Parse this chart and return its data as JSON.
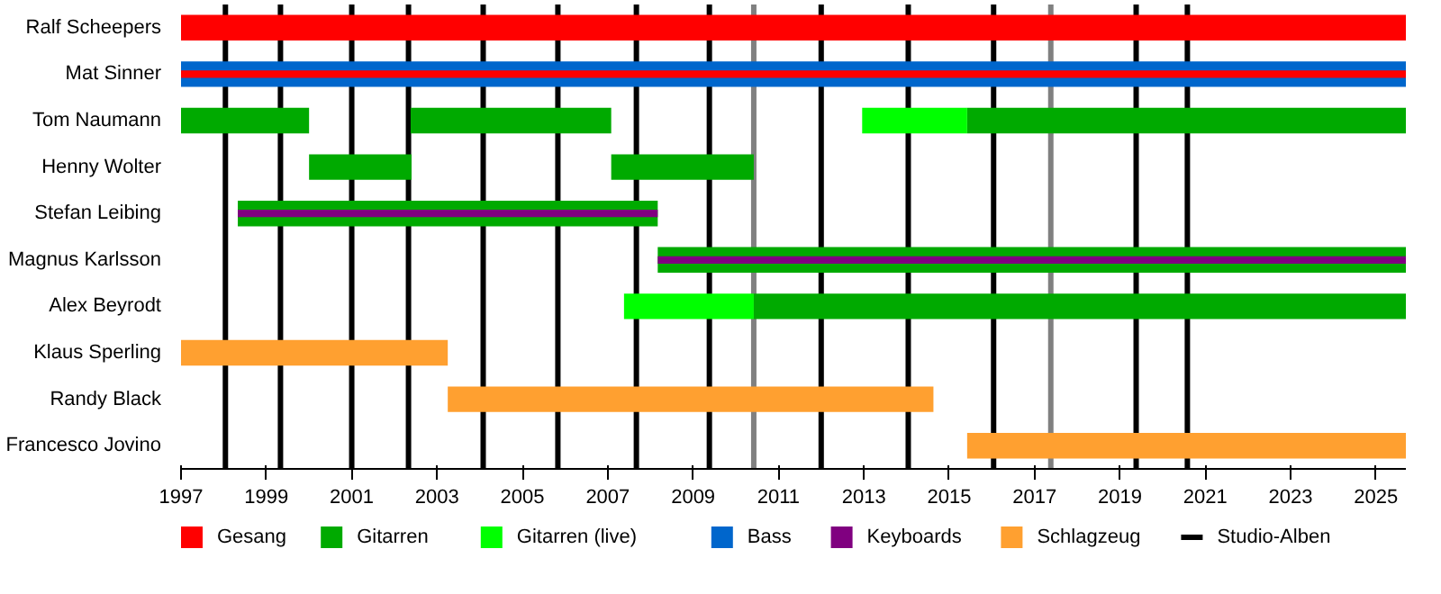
{
  "chart_data": {
    "type": "bar",
    "orientation": "horizontal",
    "categories": [
      "Ralf Scheepers",
      "Mat Sinner",
      "Tom Naumann",
      "Henny Wolter",
      "Stefan Leibing",
      "Magnus Karlsson",
      "Alex Beyrodt",
      "Klaus Sperling",
      "Randy Black",
      "Francesco Jovino"
    ],
    "series": [
      {
        "name": "Gesang",
        "color": "#ff0000",
        "base": [
          1997,
          null,
          null,
          null,
          null,
          null,
          null,
          null,
          null,
          null
        ],
        "values": [
          28.7,
          null,
          null,
          null,
          null,
          null,
          null,
          null,
          null,
          null
        ]
      },
      {
        "name": "Gitarren",
        "color": "#00aa00",
        "base": [
          null,
          null,
          1997,
          2000,
          1998.33,
          2008.17,
          2010.42,
          null,
          null,
          null
        ],
        "values": [
          null,
          null,
          3.0,
          2.4,
          9.84,
          17.53,
          15.28,
          null,
          null,
          null
        ]
      },
      {
        "color": "#00aa00",
        "base": [
          null,
          null,
          2002.38,
          2007.08,
          null,
          null,
          null,
          null,
          null,
          null
        ],
        "values": [
          null,
          null,
          4.7,
          3.34,
          null,
          null,
          null,
          null,
          null,
          null
        ]
      },
      {
        "color": "#00aa00",
        "base": [
          null,
          null,
          2015.42,
          null,
          null,
          null,
          null,
          null,
          null,
          null
        ],
        "values": [
          null,
          null,
          10.28,
          null,
          null,
          null,
          null,
          null,
          null,
          null
        ]
      },
      {
        "name": "Gitarren (live)",
        "color": "#00ff00",
        "base": [
          null,
          null,
          2012.96,
          null,
          null,
          null,
          2007.38,
          null,
          null,
          null
        ],
        "values": [
          null,
          null,
          2.46,
          null,
          null,
          null,
          3.04,
          null,
          null,
          null
        ]
      },
      {
        "name": "Bass",
        "color": "#0066cc",
        "base": [
          null,
          1997,
          null,
          null,
          null,
          null,
          null,
          null,
          null,
          null
        ],
        "values": [
          null,
          28.7,
          null,
          null,
          null,
          null,
          null,
          null,
          null,
          null
        ]
      },
      {
        "name": "Keyboards",
        "color": "#800080",
        "base": [
          null,
          null,
          null,
          null,
          1998.33,
          2008.17,
          null,
          null,
          null,
          null
        ],
        "values": [
          null,
          null,
          null,
          null,
          9.84,
          17.53,
          null,
          null,
          null,
          null
        ]
      },
      {
        "name": "Schlagzeug",
        "color": "#ffa030",
        "base": [
          null,
          null,
          null,
          null,
          null,
          null,
          null,
          1997,
          2003.25,
          2015.42
        ],
        "values": [
          null,
          null,
          null,
          null,
          null,
          null,
          null,
          6.25,
          11.38,
          10.28
        ]
      },
      {
        "color": "#ff0000",
        "base": [
          null,
          1997,
          null,
          null,
          null,
          null,
          null,
          null,
          null,
          null
        ],
        "values": [
          null,
          28.7,
          null,
          null,
          null,
          null,
          null,
          null,
          null,
          null
        ]
      }
    ],
    "xlim": [
      1997,
      2025.7
    ],
    "xticks": [
      1997,
      1999,
      2001,
      2003,
      2005,
      2007,
      2009,
      2011,
      2013,
      2015,
      2017,
      2019,
      2021,
      2023,
      2025
    ],
    "ref_lines": [
      {
        "axis": "x",
        "value": 1998.04,
        "label": "Studio-Alben",
        "color": "#000000"
      },
      {
        "axis": "x",
        "value": 1999.33,
        "color": "#000000"
      },
      {
        "axis": "x",
        "value": 2001.0,
        "color": "#000000"
      },
      {
        "axis": "x",
        "value": 2002.33,
        "color": "#000000"
      },
      {
        "axis": "x",
        "value": 2004.08,
        "color": "#000000"
      },
      {
        "axis": "x",
        "value": 2005.83,
        "color": "#000000"
      },
      {
        "axis": "x",
        "value": 2007.67,
        "color": "#000000"
      },
      {
        "axis": "x",
        "value": 2009.38,
        "color": "#000000"
      },
      {
        "axis": "x",
        "value": 2012.0,
        "color": "#000000"
      },
      {
        "axis": "x",
        "value": 2014.04,
        "color": "#000000"
      },
      {
        "axis": "x",
        "value": 2016.04,
        "color": "#000000"
      },
      {
        "axis": "x",
        "value": 2019.38,
        "color": "#000000"
      },
      {
        "axis": "x",
        "value": 2020.58,
        "color": "#000000"
      },
      {
        "axis": "x",
        "value": 2010.42,
        "color": "#808080"
      },
      {
        "axis": "x",
        "value": 2017.38,
        "color": "#808080"
      }
    ],
    "grid": false,
    "legend": "bottom"
  }
}
